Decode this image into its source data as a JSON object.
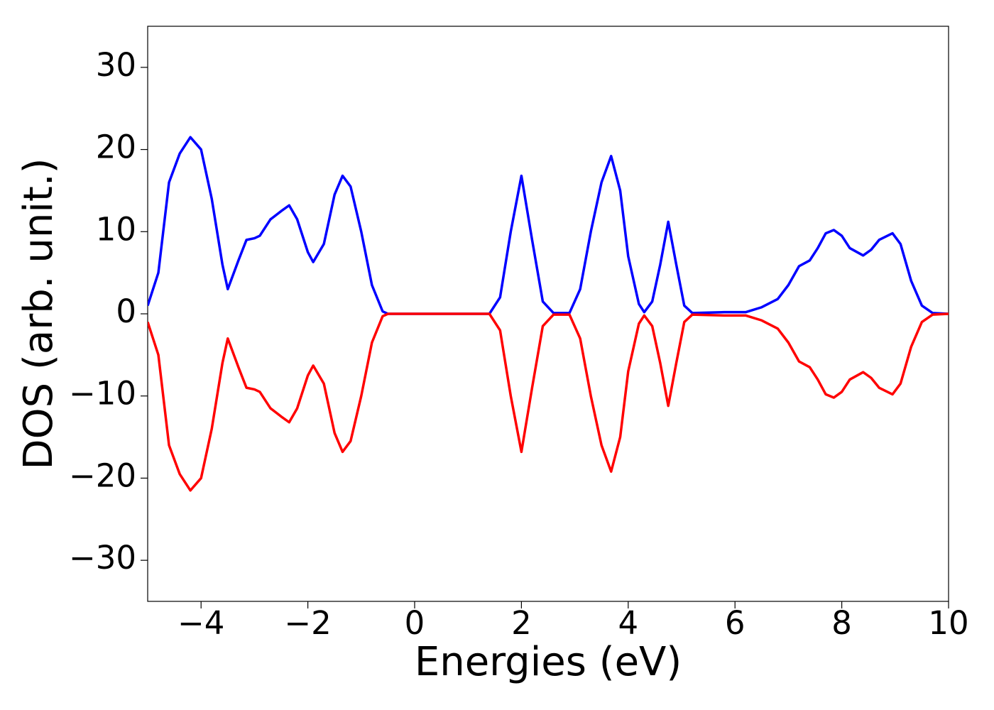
{
  "chart_data": {
    "type": "line",
    "xlabel": "Energies (eV)",
    "ylabel": "DOS (arb. unit.)",
    "x": [
      -5,
      -4.8,
      -4.6,
      -4.4,
      -4.2,
      -4.0,
      -3.8,
      -3.6,
      -3.5,
      -3.3,
      -3.15,
      -3.0,
      -2.9,
      -2.7,
      -2.5,
      -2.35,
      -2.2,
      -2.0,
      -1.9,
      -1.7,
      -1.5,
      -1.35,
      -1.2,
      -1.0,
      -0.8,
      -0.6,
      -0.5,
      1.4,
      1.6,
      1.8,
      2.0,
      2.2,
      2.4,
      2.6,
      2.9,
      3.1,
      3.3,
      3.5,
      3.68,
      3.85,
      4.0,
      4.2,
      4.3,
      4.45,
      4.6,
      4.75,
      4.9,
      5.05,
      5.2,
      5.8,
      6.2,
      6.5,
      6.8,
      7.0,
      7.2,
      7.4,
      7.55,
      7.7,
      7.85,
      8.0,
      8.15,
      8.4,
      8.55,
      8.7,
      8.95,
      9.1,
      9.3,
      9.5,
      9.7,
      10
    ],
    "series": [
      {
        "color": "#0000ff",
        "values": [
          1,
          5,
          16,
          19.5,
          21.5,
          20,
          14,
          6,
          3,
          6.5,
          9,
          9.2,
          9.5,
          11.5,
          12.5,
          13.2,
          11.5,
          7.5,
          6.3,
          8.5,
          14.5,
          16.8,
          15.5,
          10,
          3.5,
          0.3,
          0,
          0,
          2,
          10,
          16.8,
          9,
          1.5,
          0.1,
          0.1,
          3,
          10,
          16,
          19.2,
          15,
          7,
          1.2,
          0.2,
          1.5,
          6,
          11.2,
          6,
          1,
          0.1,
          0.2,
          0.2,
          0.8,
          1.8,
          3.5,
          5.8,
          6.5,
          8,
          9.8,
          10.2,
          9.5,
          8,
          7.1,
          7.8,
          9,
          9.8,
          8.5,
          4,
          1,
          0.1,
          0
        ]
      },
      {
        "color": "#ff0000",
        "values": [
          -1,
          -5,
          -16,
          -19.5,
          -21.5,
          -20,
          -14,
          -6,
          -3,
          -6.5,
          -9,
          -9.2,
          -9.5,
          -11.5,
          -12.5,
          -13.2,
          -11.5,
          -7.5,
          -6.3,
          -8.5,
          -14.5,
          -16.8,
          -15.5,
          -10,
          -3.5,
          -0.3,
          0,
          0,
          -2,
          -10,
          -16.8,
          -9,
          -1.5,
          -0.1,
          -0.1,
          -3,
          -10,
          -16,
          -19.2,
          -15,
          -7,
          -1.2,
          -0.2,
          -1.5,
          -6,
          -11.2,
          -6,
          -1,
          -0.1,
          -0.2,
          -0.2,
          -0.8,
          -1.8,
          -3.5,
          -5.8,
          -6.5,
          -8,
          -9.8,
          -10.2,
          -9.5,
          -8,
          -7.1,
          -7.8,
          -9,
          -9.8,
          -8.5,
          -4,
          -1,
          -0.1,
          0
        ]
      }
    ],
    "xlim": [
      -5,
      10
    ],
    "xticks": [
      {
        "value": -4,
        "label": "−4"
      },
      {
        "value": -2,
        "label": "−2"
      },
      0,
      2,
      4,
      6,
      8,
      10
    ],
    "ylim": [
      -35,
      35
    ],
    "yticks": [
      {
        "value": -30,
        "label": "−30"
      },
      {
        "value": -20,
        "label": "−20"
      },
      {
        "value": -10,
        "label": "−10"
      },
      0,
      10,
      20,
      30
    ],
    "grid": false
  }
}
